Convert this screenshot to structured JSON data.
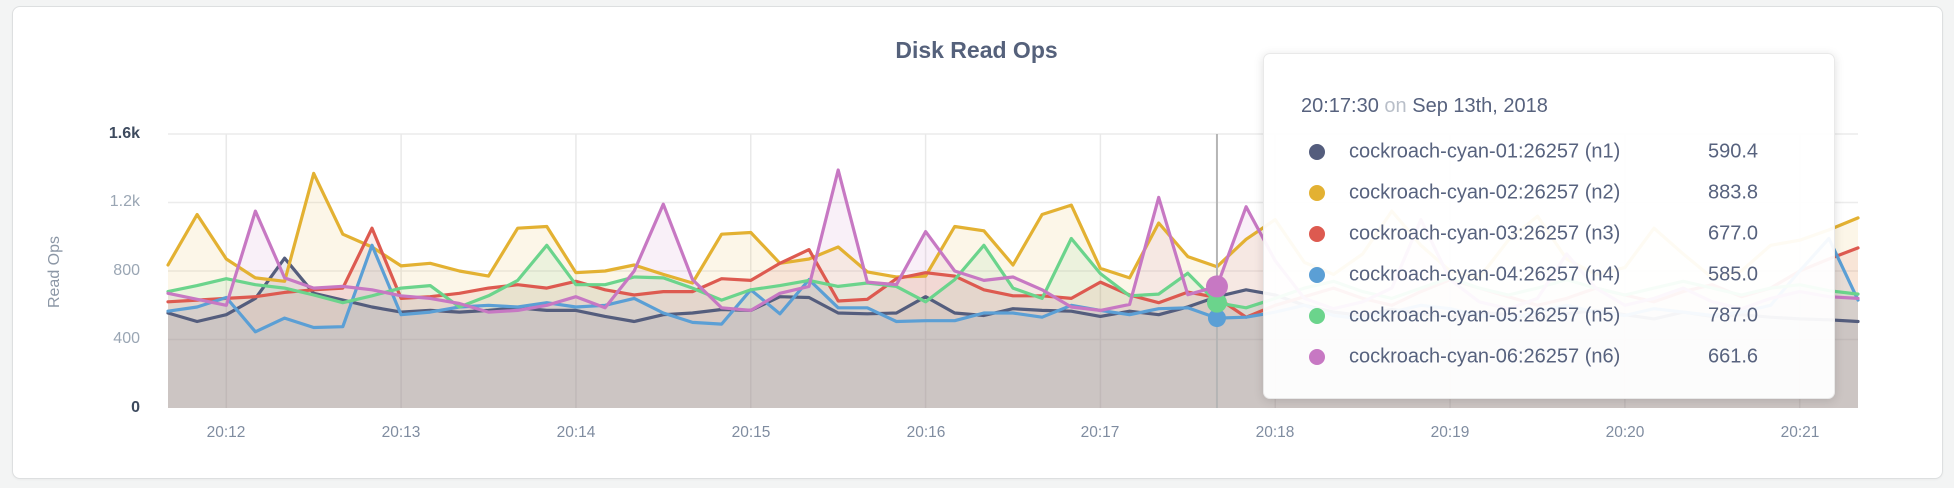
{
  "page": {
    "background": "#f3f4f4"
  },
  "card": {
    "title": "Disk Read Ops"
  },
  "axes": {
    "y_title": "Read Ops",
    "y_ticks": [
      {
        "value": 1600,
        "label": "1.6k",
        "emphasis": true
      },
      {
        "value": 1200,
        "label": "1.2k",
        "emphasis": false
      },
      {
        "value": 800,
        "label": "800",
        "emphasis": false
      },
      {
        "value": 400,
        "label": "400",
        "emphasis": false
      },
      {
        "value": 0,
        "label": "0",
        "emphasis": true
      }
    ],
    "x_ticks": [
      "20:12",
      "20:13",
      "20:14",
      "20:15",
      "20:16",
      "20:17",
      "20:18",
      "20:19",
      "20:20",
      "20:21"
    ]
  },
  "chart_data": {
    "type": "line",
    "title": "Disk Read Ops",
    "xlabel": "",
    "ylabel": "Read Ops",
    "ylim": [
      0,
      1600
    ],
    "grid": true,
    "legend_position": "tooltip",
    "x_start_time": "20:11:40",
    "x_end_time": "20:21:20",
    "x_step_seconds": 10,
    "x_tick_labels": [
      "20:12",
      "20:13",
      "20:14",
      "20:15",
      "20:16",
      "20:17",
      "20:18",
      "20:19",
      "20:20",
      "20:21"
    ],
    "series": [
      {
        "name": "cockroach-cyan-01:26257 (n1)",
        "color": "#545d7d",
        "values": [
          555,
          505,
          545,
          640,
          875,
          670,
          630,
          590,
          560,
          570,
          560,
          570,
          585,
          570,
          570,
          535,
          505,
          545,
          555,
          575,
          570,
          650,
          645,
          555,
          550,
          555,
          650,
          555,
          540,
          580,
          570,
          565,
          535,
          565,
          545,
          590.4,
          650,
          690,
          660,
          600,
          560,
          540,
          575,
          550,
          530,
          560,
          545,
          525,
          550,
          570,
          545,
          520,
          560,
          535,
          545,
          530,
          520,
          515,
          505
        ]
      },
      {
        "name": "cockroach-cyan-02:26257 (n2)",
        "color": "#e3b132",
        "values": [
          835,
          1130,
          870,
          760,
          740,
          1370,
          1015,
          940,
          830,
          845,
          800,
          770,
          1050,
          1060,
          790,
          800,
          835,
          780,
          730,
          1015,
          1025,
          845,
          870,
          940,
          795,
          765,
          770,
          1060,
          1035,
          835,
          1130,
          1185,
          815,
          760,
          1080,
          883.8,
          825,
          985,
          1100,
          850,
          780,
          900,
          1150,
          950,
          800,
          760,
          980,
          1120,
          870,
          780,
          820,
          1050,
          900,
          760,
          800,
          950,
          980,
          1040,
          1110
        ]
      },
      {
        "name": "cockroach-cyan-03:26257 (n3)",
        "color": "#dd5a50",
        "values": [
          620,
          630,
          640,
          650,
          675,
          690,
          700,
          1050,
          640,
          650,
          670,
          700,
          720,
          700,
          740,
          690,
          660,
          680,
          680,
          755,
          745,
          845,
          925,
          625,
          635,
          755,
          790,
          770,
          690,
          655,
          655,
          640,
          735,
          660,
          615,
          677,
          645,
          530,
          600,
          650,
          700,
          640,
          600,
          680,
          750,
          700,
          650,
          600,
          640,
          700,
          660,
          620,
          680,
          720,
          650,
          700,
          800,
          870,
          935
        ]
      },
      {
        "name": "cockroach-cyan-04:26257 (n4)",
        "color": "#5b9fd5",
        "values": [
          565,
          590,
          645,
          445,
          525,
          470,
          475,
          950,
          545,
          560,
          590,
          600,
          590,
          615,
          590,
          600,
          640,
          555,
          500,
          490,
          690,
          550,
          750,
          585,
          585,
          505,
          510,
          510,
          555,
          555,
          530,
          600,
          570,
          545,
          580,
          585,
          525,
          530,
          560,
          600,
          540,
          520,
          560,
          600,
          580,
          540,
          520,
          560,
          600,
          560,
          540,
          580,
          560,
          540,
          560,
          600,
          800,
          990,
          630
        ]
      },
      {
        "name": "cockroach-cyan-05:26257 (n5)",
        "color": "#6bd48c",
        "values": [
          680,
          715,
          755,
          720,
          700,
          660,
          615,
          655,
          700,
          715,
          590,
          655,
          745,
          950,
          720,
          720,
          765,
          760,
          700,
          630,
          690,
          715,
          745,
          710,
          730,
          710,
          620,
          750,
          950,
          700,
          640,
          990,
          785,
          655,
          665,
          787,
          615,
          585,
          640,
          700,
          740,
          680,
          640,
          700,
          760,
          700,
          660,
          700,
          750,
          700,
          660,
          700,
          740,
          700,
          660,
          700,
          720,
          685,
          665
        ]
      },
      {
        "name": "cockroach-cyan-06:26257 (n6)",
        "color": "#c778c3",
        "values": [
          670,
          635,
          600,
          1150,
          760,
          700,
          710,
          690,
          655,
          640,
          610,
          560,
          570,
          600,
          650,
          585,
          800,
          1190,
          750,
          585,
          570,
          670,
          710,
          1390,
          735,
          720,
          1030,
          800,
          745,
          765,
          690,
          590,
          570,
          605,
          1230,
          661.6,
          710,
          1175,
          860,
          640,
          580,
          620,
          700,
          1100,
          750,
          620,
          580,
          640,
          900,
          700,
          600,
          640,
          700,
          620,
          580,
          640,
          680,
          650,
          640
        ]
      }
    ],
    "hover": {
      "index": 36,
      "line_color": "#b5b5b5",
      "dots": [
        {
          "series": "cockroach-cyan-04:26257 (n4)",
          "color": "#5b9fd5",
          "value": 525,
          "radius": 9
        },
        {
          "series": "cockroach-cyan-05:26257 (n5)",
          "color": "#6bd48c",
          "value": 615,
          "radius": 10
        },
        {
          "series": "cockroach-cyan-06:26257 (n6)",
          "color": "#c778c3",
          "value": 710,
          "radius": 11
        }
      ]
    }
  },
  "tooltip": {
    "time": "20:17:30",
    "conjunction": "on",
    "date": "Sep 13th, 2018",
    "rows": [
      {
        "label": "cockroach-cyan-01:26257 (n1)",
        "value": "590.4",
        "color": "#545d7d"
      },
      {
        "label": "cockroach-cyan-02:26257 (n2)",
        "value": "883.8",
        "color": "#e3b132"
      },
      {
        "label": "cockroach-cyan-03:26257 (n3)",
        "value": "677.0",
        "color": "#dd5a50"
      },
      {
        "label": "cockroach-cyan-04:26257 (n4)",
        "value": "585.0",
        "color": "#5b9fd5"
      },
      {
        "label": "cockroach-cyan-05:26257 (n5)",
        "value": "787.0",
        "color": "#6bd48c"
      },
      {
        "label": "cockroach-cyan-06:26257 (n6)",
        "value": "661.6",
        "color": "#c778c3"
      }
    ]
  }
}
